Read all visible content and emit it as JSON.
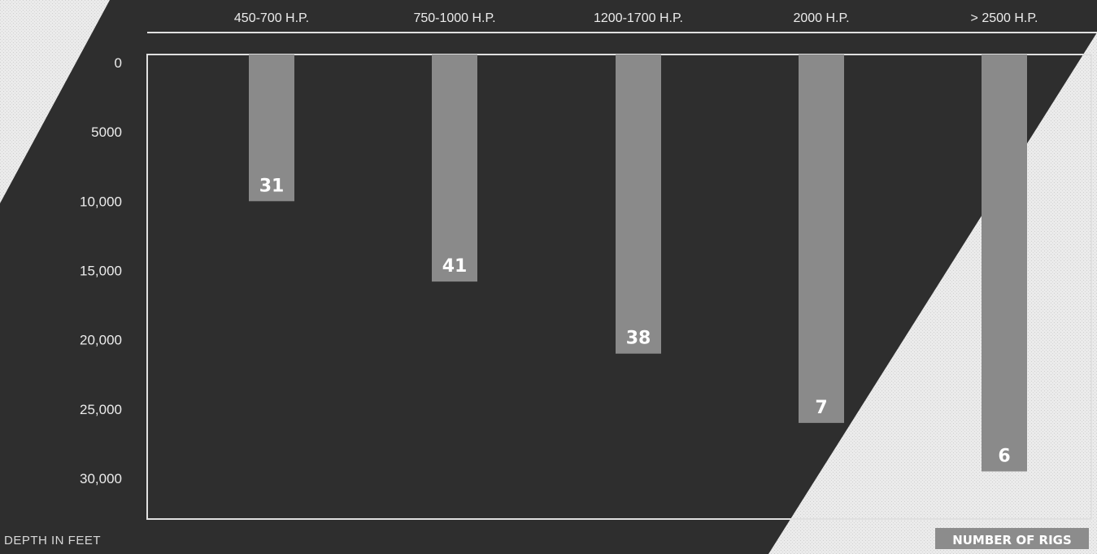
{
  "colors": {
    "dark_background": "#2e2e2e",
    "light_background": "#e9e9e9",
    "bar": "#8a8a8a",
    "frame_line": "#e0e0e0",
    "data_label_box": "#8a8a8a",
    "legend_box": "#8c8c8c"
  },
  "chart_data": {
    "type": "bar",
    "orientation": "vertical-downward",
    "categories": [
      "450-700 H.P.",
      "750-1000 H.P.",
      "1200-1700 H.P.",
      "2000 H.P.",
      "> 2500 H.P."
    ],
    "series": [
      {
        "values": [
          10000,
          15800,
          21000,
          26000,
          29500
        ],
        "labels": [
          31,
          41,
          38,
          7,
          6
        ]
      }
    ],
    "y_ticks": [
      "0",
      "5000",
      "10,000",
      "15,000",
      "20,000",
      "25,000",
      "30,000"
    ],
    "ylim": [
      0,
      32000
    ],
    "ylabel": "DEPTH IN FEET",
    "legend": "NUMBER OF RIGS",
    "legend_position": "bottom-right",
    "category_axis_position": "top",
    "grid": false
  }
}
